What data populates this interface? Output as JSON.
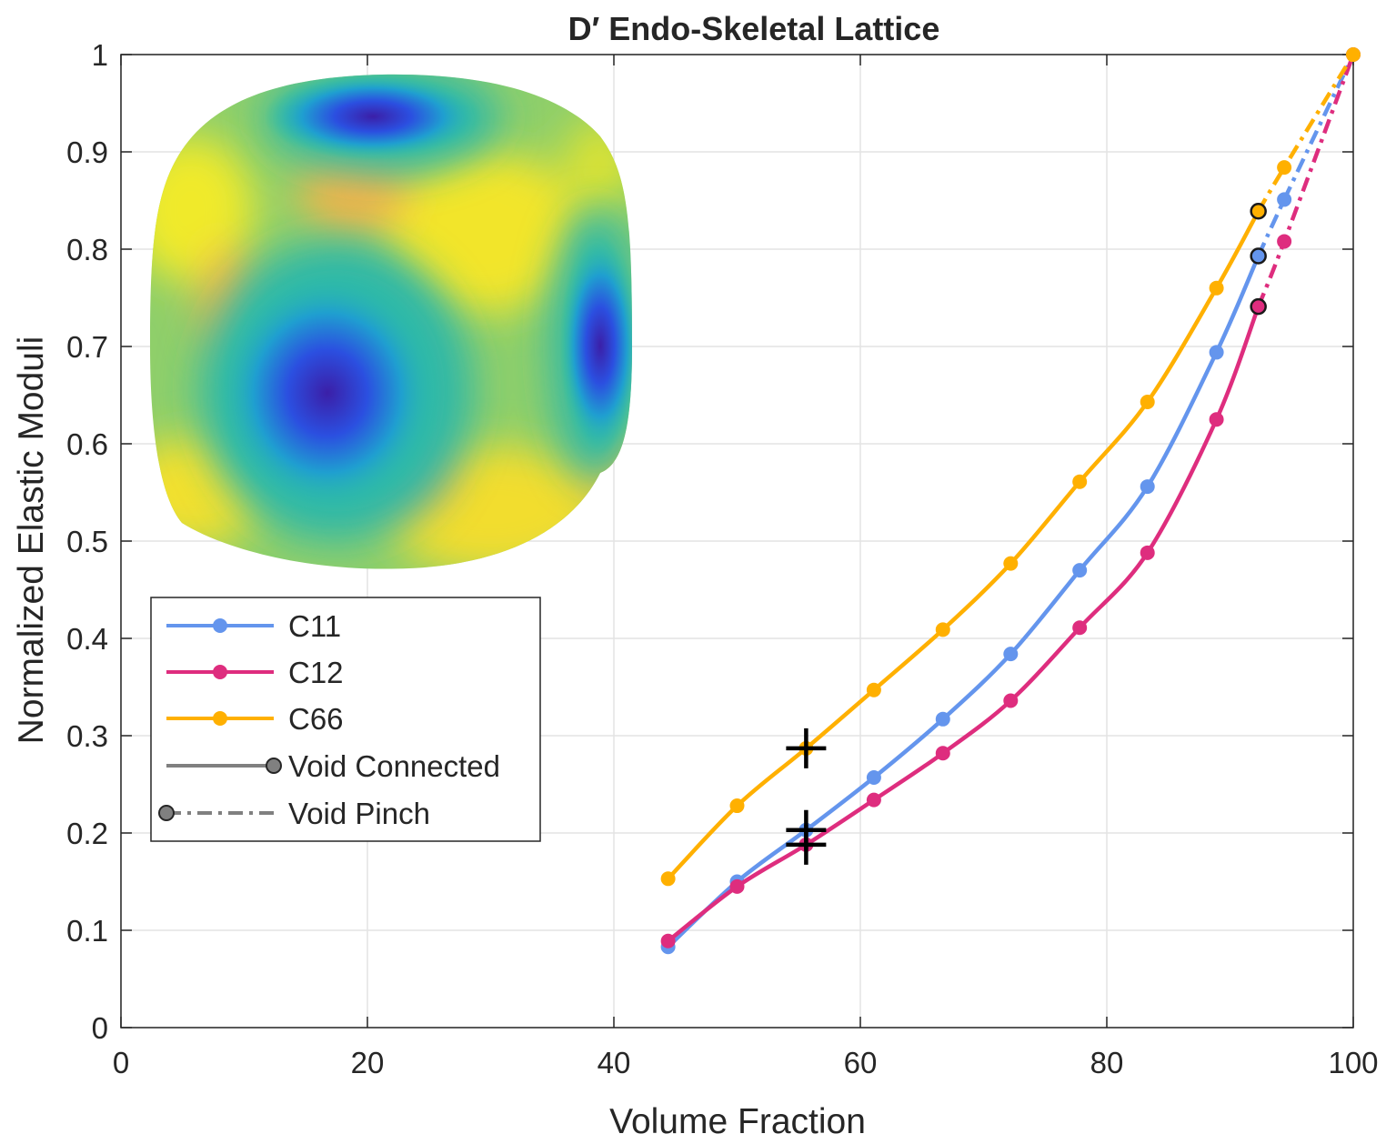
{
  "chart_data": {
    "type": "line",
    "title": "D′ Endo-Skeletal Lattice",
    "xlabel": "Volume Fraction",
    "ylabel": "Normalized Elastic Moduli",
    "xlim": [
      0,
      100
    ],
    "ylim": [
      0,
      1
    ],
    "xticks": [
      "0",
      "20",
      "40",
      "60",
      "80",
      "100"
    ],
    "yticks": [
      "0",
      "0.1",
      "0.2",
      "0.3",
      "0.4",
      "0.5",
      "0.6",
      "0.7",
      "0.8",
      "0.9",
      "1"
    ],
    "grid": true,
    "legend_position": "left-middle",
    "series": [
      {
        "name": "C11",
        "color": "#6495ED",
        "connected": [
          [
            44.4,
            0.083
          ],
          [
            50,
            0.15
          ],
          [
            55.6,
            0.203
          ],
          [
            61.1,
            0.257
          ],
          [
            66.7,
            0.317
          ],
          [
            72.2,
            0.384
          ],
          [
            77.8,
            0.47
          ],
          [
            83.3,
            0.556
          ],
          [
            88.9,
            0.694
          ],
          [
            92.3,
            0.793
          ]
        ],
        "pinch": [
          [
            92.3,
            0.793
          ],
          [
            94.4,
            0.851
          ],
          [
            100,
            1.0
          ]
        ],
        "transition": [
          92.3,
          0.793
        ]
      },
      {
        "name": "C12",
        "color": "#DE2D7E",
        "connected": [
          [
            44.4,
            0.089
          ],
          [
            50,
            0.145
          ],
          [
            55.6,
            0.188
          ],
          [
            61.1,
            0.234
          ],
          [
            66.7,
            0.282
          ],
          [
            72.2,
            0.336
          ],
          [
            77.8,
            0.411
          ],
          [
            83.3,
            0.488
          ],
          [
            88.9,
            0.625
          ],
          [
            92.3,
            0.741
          ]
        ],
        "pinch": [
          [
            92.3,
            0.741
          ],
          [
            94.4,
            0.808
          ],
          [
            100,
            1.0
          ]
        ],
        "transition": [
          92.3,
          0.741
        ]
      },
      {
        "name": "C66",
        "color": "#FFB000",
        "connected": [
          [
            44.4,
            0.153
          ],
          [
            50,
            0.228
          ],
          [
            55.6,
            0.287
          ],
          [
            61.1,
            0.347
          ],
          [
            66.7,
            0.409
          ],
          [
            72.2,
            0.477
          ],
          [
            77.8,
            0.561
          ],
          [
            83.3,
            0.643
          ],
          [
            88.9,
            0.76
          ],
          [
            92.3,
            0.839
          ]
        ],
        "pinch": [
          [
            92.3,
            0.839
          ],
          [
            94.4,
            0.884
          ],
          [
            100,
            1.0
          ]
        ],
        "transition": [
          92.3,
          0.839
        ]
      }
    ],
    "markers_plus": [
      [
        55.6,
        0.287
      ],
      [
        55.6,
        0.203
      ],
      [
        55.6,
        0.188
      ]
    ],
    "legend_extra": [
      {
        "name": "Void Connected",
        "style": "solid"
      },
      {
        "name": "Void Pinch",
        "style": "dashed"
      }
    ]
  }
}
